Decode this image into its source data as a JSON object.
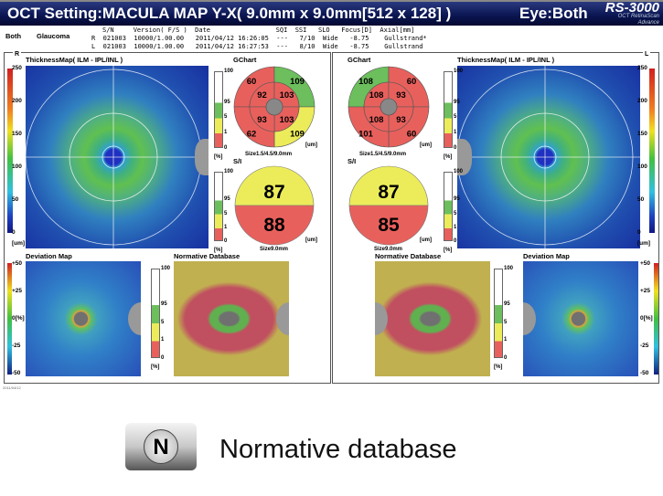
{
  "header": {
    "title": "OCT Setting:MACULA MAP Y-X( 9.0mm x 9.0mm[512 x 128] )",
    "eye": "Eye:Both",
    "logo": "RS-3000",
    "logo_sub1": "OCT RetinaScan",
    "logo_sub2": "Advance"
  },
  "info": {
    "eye": "Both",
    "disease": "Glaucoma",
    "columns": "S/N     Version( F/S )  Date                 SQI  SSI   SLO   Focus[D]  Axial[mm]",
    "rows": [
      "R  021003  10000/1.00.00   2011/04/12 16:26:05  ---   7/10  Wide   -8.75    Gullstrand*",
      "L  021003  10000/1.00.00   2011/04/12 16:27:53  ---   8/10  Wide   -8.75    Gullstrand"
    ]
  },
  "side_labels": {
    "right": "R",
    "left": "L"
  },
  "thickness_title": "ThicknessMap( ILM - IPL/INL )",
  "thickness_scale": [
    "250",
    "200",
    "150",
    "100",
    "50",
    "0",
    "[um]"
  ],
  "deviation_title": "Deviation Map",
  "deviation_scale": [
    "+50",
    "+25",
    "0[%]",
    "-25",
    "-50"
  ],
  "normative_title": "Normative Database",
  "percent_scale": [
    "100",
    "95",
    "5",
    "1",
    "0",
    "[%]"
  ],
  "gchart_title": "GChart",
  "si_title": "S/I",
  "unit_um": "[um]",
  "gchart_size": "Size1.5/4.5/9.0mm",
  "si_size": "Size9.0mm",
  "colors": {
    "green": "#6cbf5c",
    "yellow": "#ecec5a",
    "red": "#e8605c",
    "center": "#888888"
  },
  "eyes": {
    "R": {
      "gchart": {
        "outer": [
          {
            "pos": "TL",
            "value": "60",
            "status": "red"
          },
          {
            "pos": "TR",
            "value": "109",
            "status": "green"
          },
          {
            "pos": "BR",
            "value": "109",
            "status": "yellow"
          },
          {
            "pos": "BL",
            "value": "62",
            "status": "red"
          }
        ],
        "inner": [
          {
            "pos": "TL",
            "value": "92",
            "status": "red"
          },
          {
            "pos": "TR",
            "value": "103",
            "status": "red"
          },
          {
            "pos": "BR",
            "value": "103",
            "status": "red"
          },
          {
            "pos": "BL",
            "value": "93",
            "status": "red"
          }
        ]
      },
      "si": {
        "superior": "87",
        "superior_status": "yellow",
        "inferior": "88",
        "inferior_status": "red"
      }
    },
    "L": {
      "gchart": {
        "outer": [
          {
            "pos": "TL",
            "value": "108",
            "status": "green"
          },
          {
            "pos": "TR",
            "value": "60",
            "status": "red"
          },
          {
            "pos": "BR",
            "value": "60",
            "status": "red"
          },
          {
            "pos": "BL",
            "value": "101",
            "status": "red"
          }
        ],
        "inner": [
          {
            "pos": "TL",
            "value": "108",
            "status": "red"
          },
          {
            "pos": "TR",
            "value": "93",
            "status": "red"
          },
          {
            "pos": "BR",
            "value": "93",
            "status": "red"
          },
          {
            "pos": "BL",
            "value": "108",
            "status": "red"
          }
        ]
      },
      "si": {
        "superior": "87",
        "superior_status": "yellow",
        "inferior": "85",
        "inferior_status": "red"
      }
    }
  },
  "footer_date": "2011/04/12",
  "caption": {
    "button_letter": "N",
    "text": "Normative database"
  }
}
